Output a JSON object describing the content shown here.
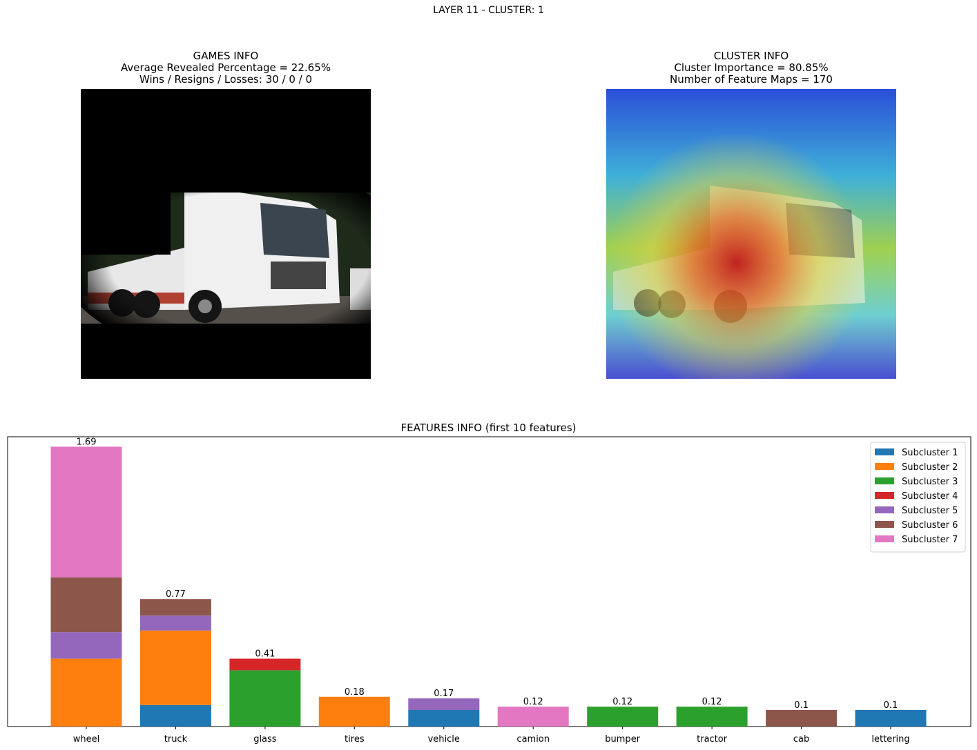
{
  "suptitle": "LAYER 11 - CLUSTER: 1",
  "games_info": {
    "title": "GAMES INFO",
    "line1": "Average Revealed Percentage = 22.65%",
    "line2": "Wins / Resigns / Losses: 30 / 0 / 0"
  },
  "cluster_info": {
    "title": "CLUSTER INFO",
    "line1": "Cluster Importance = 80.85%",
    "line2": "Number of Feature Maps = 170"
  },
  "images": {
    "left": "masked-truck-photo",
    "right": "heatmap-truck-photo"
  },
  "chart_data": {
    "type": "bar",
    "stacked": true,
    "title": "FEATURES INFO (first 10 features)",
    "xlabel": "",
    "ylabel": "",
    "ylim": [
      0,
      1.75
    ],
    "grid": false,
    "legend_position": "top-right",
    "categories": [
      "wheel",
      "truck",
      "glass",
      "tires",
      "vehicle",
      "camion",
      "bumper",
      "tractor",
      "cab",
      "lettering"
    ],
    "totals_labels": [
      "1.69",
      "0.77",
      "0.41",
      "0.18",
      "0.17",
      "0.12",
      "0.12",
      "0.12",
      "0.1",
      "0.1"
    ],
    "series": [
      {
        "name": "Subcluster 1",
        "color": "#1f77b4",
        "values": [
          0,
          0.13,
          0,
          0,
          0.1,
          0,
          0,
          0,
          0,
          0.1
        ]
      },
      {
        "name": "Subcluster 2",
        "color": "#ff7f0e",
        "values": [
          0.41,
          0.45,
          0,
          0.18,
          0,
          0,
          0,
          0,
          0,
          0
        ]
      },
      {
        "name": "Subcluster 3",
        "color": "#2ca02c",
        "values": [
          0,
          0,
          0.34,
          0,
          0,
          0,
          0.12,
          0.12,
          0,
          0
        ]
      },
      {
        "name": "Subcluster 4",
        "color": "#d62728",
        "values": [
          0,
          0,
          0.07,
          0,
          0,
          0,
          0,
          0,
          0,
          0
        ]
      },
      {
        "name": "Subcluster 5",
        "color": "#9467bd",
        "values": [
          0.16,
          0.09,
          0,
          0,
          0.07,
          0,
          0,
          0,
          0,
          0
        ]
      },
      {
        "name": "Subcluster 6",
        "color": "#8c564b",
        "values": [
          0.33,
          0.1,
          0,
          0,
          0,
          0,
          0,
          0,
          0.1,
          0
        ]
      },
      {
        "name": "Subcluster 7",
        "color": "#e377c2",
        "values": [
          0.79,
          0,
          0,
          0,
          0,
          0.12,
          0,
          0,
          0,
          0
        ]
      }
    ]
  }
}
